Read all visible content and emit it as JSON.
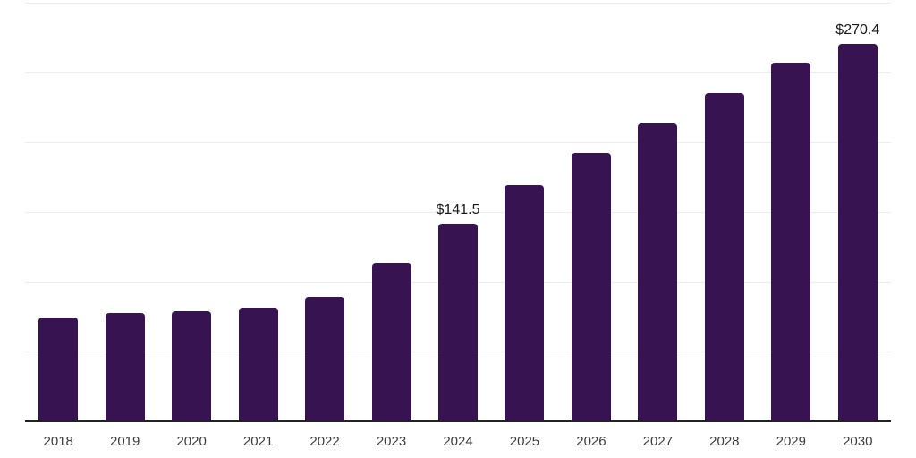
{
  "chart_data": {
    "type": "bar",
    "title": "",
    "xlabel": "",
    "ylabel": "",
    "ylim": [
      0,
      300
    ],
    "grid_step": 50,
    "grid": true,
    "legend": false,
    "bar_color": "#371352",
    "categories": [
      "2018",
      "2019",
      "2020",
      "2021",
      "2022",
      "2023",
      "2024",
      "2025",
      "2026",
      "2027",
      "2028",
      "2029",
      "2030"
    ],
    "values": [
      74.5,
      77.5,
      79,
      81.5,
      89,
      113.5,
      141.5,
      169,
      192,
      213.5,
      235.5,
      257,
      270.4
    ],
    "point_labels": [
      "",
      "",
      "",
      "",
      "",
      "",
      "$141.5",
      "",
      "",
      "",
      "",
      "",
      "$270.4"
    ]
  },
  "colors": {
    "background": "#ffffff",
    "bar": "#371352",
    "gridline": "#ededed",
    "axis_line": "#222222",
    "value_label": "#1a1a1a",
    "tick_label": "#3c3c3c"
  }
}
